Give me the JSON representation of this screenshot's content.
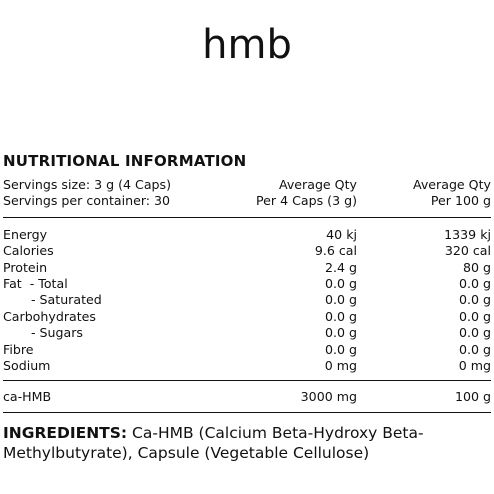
{
  "brand": "hmb",
  "heading": "NUTRITIONAL INFORMATION",
  "header_rows": [
    {
      "label": "Servings size: 3 g (4 Caps)",
      "c1": "Average Qty",
      "c2": "Average Qty"
    },
    {
      "label": "Servings per container: 30",
      "c1": "Per 4 Caps (3 g)",
      "c2": "Per 100 g"
    }
  ],
  "nutrients": [
    {
      "label": "Energy",
      "c1": "40 kj",
      "c2": "1339 kj"
    },
    {
      "label": "Calories",
      "c1": "9.6 cal",
      "c2": "320 cal"
    },
    {
      "label": "Protein",
      "c1": "2.4 g",
      "c2": "80 g"
    },
    {
      "label": "Fat  - Total",
      "c1": "0.0 g",
      "c2": "0.0 g"
    },
    {
      "label": "- Saturated",
      "c1": "0.0 g",
      "c2": "0.0 g"
    },
    {
      "label": "Carbohydrates",
      "c1": "0.0 g",
      "c2": "0.0 g"
    },
    {
      "label": "- Sugars",
      "c1": "0.0 g",
      "c2": "0.0 g"
    },
    {
      "label": "Fibre",
      "c1": "0.0 g",
      "c2": "0.0 g"
    },
    {
      "label": "Sodium",
      "c1": "0 mg",
      "c2": "0 mg"
    }
  ],
  "active": {
    "label": "ca-HMB",
    "c1": "3000 mg",
    "c2": "100 g"
  },
  "ingredients": {
    "title": "INGREDIENTS:",
    "text": " Ca-HMB (Calcium Beta-Hydroxy Beta-Methylbutyrate), Capsule (Vegetable Cellulose)"
  }
}
